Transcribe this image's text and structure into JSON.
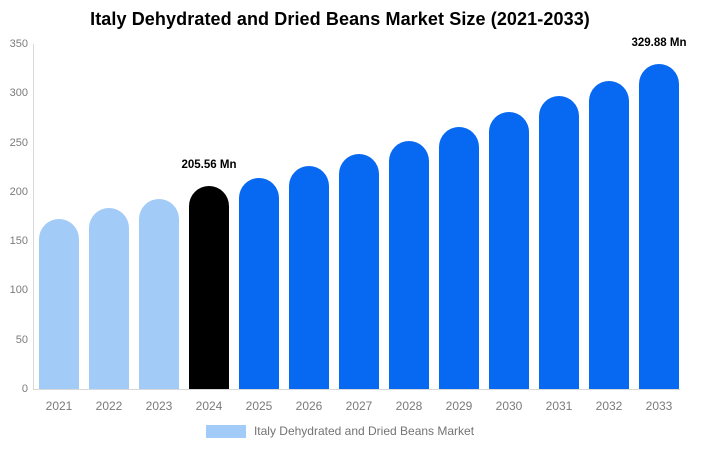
{
  "title": "Italy Dehydrated and Dried Beans Market Size (2021-2033)",
  "colors": {
    "historical_bar": "#a3cbf8",
    "highlight_bar": "#000000",
    "forecast_bar": "#0768f1",
    "axis_line": "#d8d8d8",
    "axis_text": "#7b7b7b",
    "annotation_text": "#000000",
    "legend_text": "#737373",
    "title_text": "#000000",
    "background": "#ffffff"
  },
  "legend": {
    "label": "Italy Dehydrated and Dried Beans Market",
    "swatch_color": "#a3cbf8"
  },
  "chart_data": {
    "type": "bar",
    "title": "Italy Dehydrated and Dried Beans Market Size (2021-2033)",
    "xlabel": "",
    "ylabel": "",
    "unit": "Mn",
    "categories": [
      "2021",
      "2022",
      "2023",
      "2024",
      "2025",
      "2026",
      "2027",
      "2028",
      "2029",
      "2030",
      "2031",
      "2032",
      "2033"
    ],
    "values": [
      173,
      184,
      193,
      205.56,
      214,
      226,
      238,
      252,
      266,
      281,
      297,
      313,
      329.88
    ],
    "bar_colors": [
      "#a3cbf8",
      "#a3cbf8",
      "#a3cbf8",
      "#000000",
      "#0768f1",
      "#0768f1",
      "#0768f1",
      "#0768f1",
      "#0768f1",
      "#0768f1",
      "#0768f1",
      "#0768f1",
      "#0768f1"
    ],
    "ylim": [
      0,
      350
    ],
    "yticks": [
      0,
      50,
      100,
      150,
      200,
      250,
      300,
      350
    ],
    "annotations": [
      {
        "category": "2024",
        "text": "205.56 Mn"
      },
      {
        "category": "2033",
        "text": "329.88 Mn"
      }
    ],
    "grid": false,
    "legend_position": "bottom",
    "legend_entries": [
      "Italy Dehydrated and Dried Beans Market"
    ]
  }
}
